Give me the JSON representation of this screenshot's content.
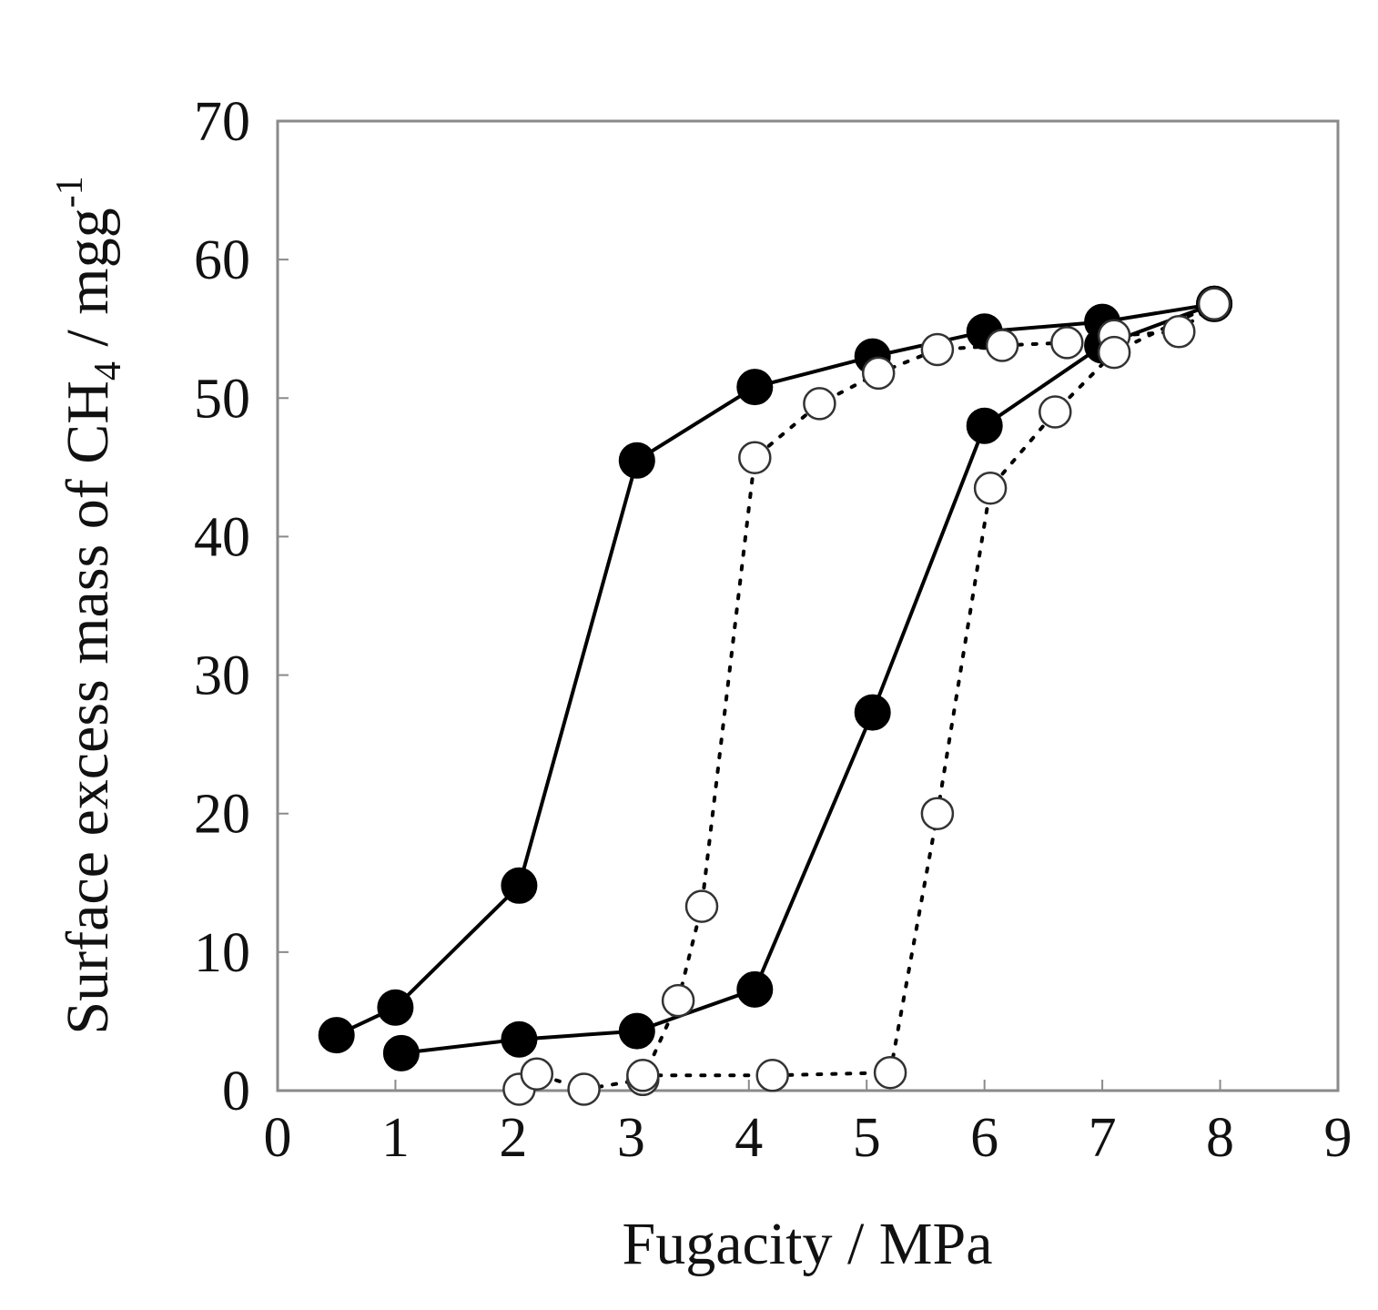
{
  "chart_data": {
    "type": "scatter",
    "title": "",
    "xlabel": "Fugacity / MPa",
    "ylabel": {
      "main": "Surface excess mass of CH",
      "subscript": "4",
      "unit": " / mgg",
      "superscript": "-1"
    },
    "xlim": [
      0,
      9
    ],
    "ylim": [
      0,
      70
    ],
    "xticks": [
      "0",
      "1",
      "2",
      "3",
      "4",
      "5",
      "6",
      "7",
      "8",
      "9"
    ],
    "yticks": [
      "0",
      "10",
      "20",
      "30",
      "40",
      "50",
      "60",
      "70"
    ],
    "grid": false,
    "legend": "none",
    "series": [
      {
        "marker": "filled-circle",
        "line": "solid",
        "color": "#000000",
        "points": [
          [
            0.5,
            4
          ],
          [
            1.0,
            6
          ],
          [
            2.05,
            14.8
          ],
          [
            3.05,
            45.5
          ],
          [
            4.05,
            50.8
          ],
          [
            5.05,
            53
          ],
          [
            6.0,
            54.8
          ],
          [
            7.0,
            55.5
          ],
          [
            7.95,
            56.8
          ]
        ]
      },
      {
        "marker": "filled-circle",
        "line": "solid",
        "color": "#000000",
        "points": [
          [
            1.05,
            2.7
          ],
          [
            2.05,
            3.7
          ],
          [
            3.05,
            4.3
          ],
          [
            4.05,
            7.3
          ],
          [
            5.05,
            27.3
          ],
          [
            6.0,
            48
          ],
          [
            7.0,
            53.8
          ],
          [
            7.95,
            56.8
          ]
        ]
      },
      {
        "marker": "open-circle",
        "line": "dotted",
        "color": "#000000",
        "points": [
          [
            2.05,
            0.1
          ],
          [
            2.2,
            1.2
          ],
          [
            2.6,
            0.1
          ],
          [
            3.1,
            0.8
          ],
          [
            3.4,
            6.5
          ],
          [
            3.6,
            13.3
          ],
          [
            4.05,
            45.7
          ],
          [
            4.6,
            49.6
          ],
          [
            5.1,
            51.8
          ],
          [
            5.6,
            53.5
          ],
          [
            6.15,
            53.8
          ],
          [
            6.7,
            54
          ],
          [
            7.1,
            54.5
          ],
          [
            7.65,
            54.8
          ],
          [
            7.95,
            56.8
          ]
        ]
      },
      {
        "marker": "open-circle",
        "line": "dotted",
        "color": "#000000",
        "points": [
          [
            3.1,
            1.1
          ],
          [
            4.2,
            1.1
          ],
          [
            5.2,
            1.3
          ],
          [
            5.6,
            20
          ],
          [
            6.05,
            43.5
          ],
          [
            6.6,
            49
          ],
          [
            7.1,
            53.3
          ],
          [
            7.95,
            56.8
          ]
        ]
      }
    ]
  }
}
